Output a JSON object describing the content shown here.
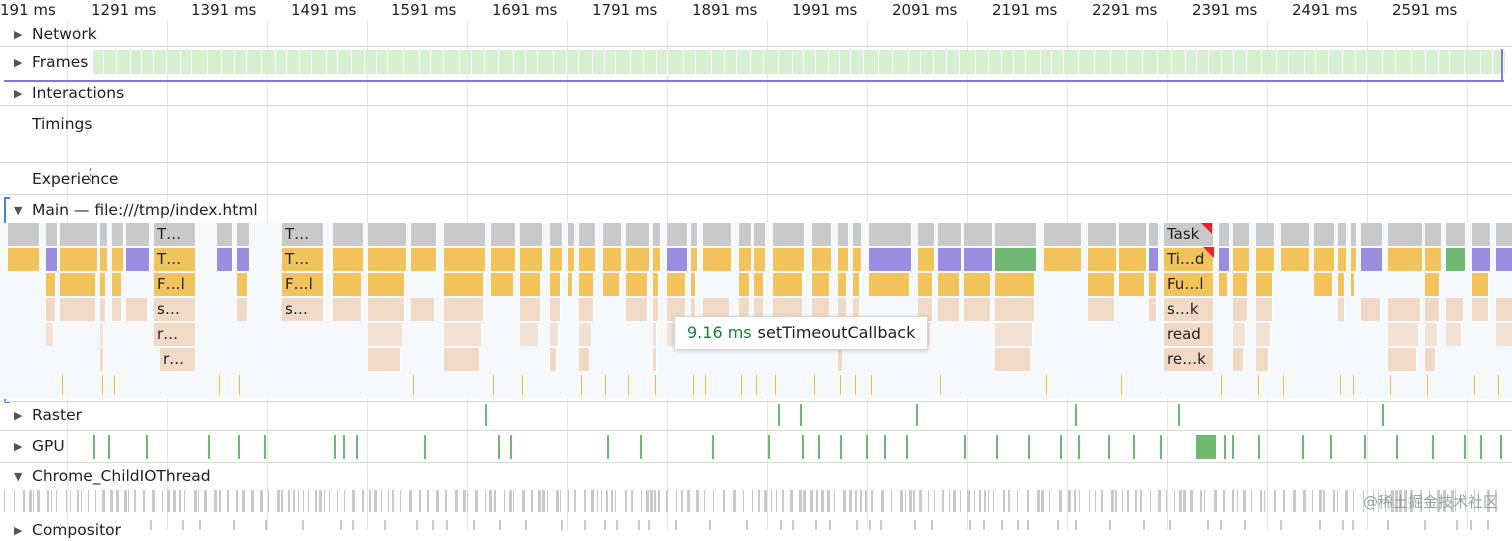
{
  "ruler": {
    "ticks": [
      "191 ms",
      "1291 ms",
      "1391 ms",
      "1491 ms",
      "1591 ms",
      "1691 ms",
      "1791 ms",
      "1891 ms",
      "1991 ms",
      "2091 ms",
      "2191 ms",
      "2291 ms",
      "2391 ms",
      "2491 ms",
      "2591 ms"
    ]
  },
  "tracks": {
    "network": "Network",
    "frames": "Frames",
    "interactions": "Interactions",
    "timings": "Timings",
    "experience": "Experience",
    "main": "Main — file:///tmp/index.html",
    "raster": "Raster",
    "gpu": "GPU",
    "childio": "Chrome_ChildIOThread",
    "compositor": "Compositor"
  },
  "flame_labels": {
    "c1": [
      "T…",
      "T…",
      "F…l",
      "s…",
      "r…",
      "r…"
    ],
    "c2": [
      "T…",
      "T…",
      "F…l",
      "s…"
    ],
    "c3": [
      "Task",
      "Ti…d",
      "Fu…l",
      "s…k",
      "read",
      "re…k"
    ]
  },
  "tooltip": {
    "duration": "9.16 ms",
    "name": "setTimeoutCallback"
  },
  "watermark": "@稀土掘金技术社区",
  "colors": {
    "task": "#c9c9c9",
    "scripting": "#f2c35b",
    "rendering": "#9b8ee0",
    "painting": "#6fb86f",
    "subcall": "#f0d9c5",
    "selection": "#4a7fd4",
    "frames": "#d4f0ce",
    "long_task_marker": "#e8232e"
  },
  "icons": {
    "collapsed": "triangle-right-icon",
    "expanded": "triangle-down-icon"
  }
}
